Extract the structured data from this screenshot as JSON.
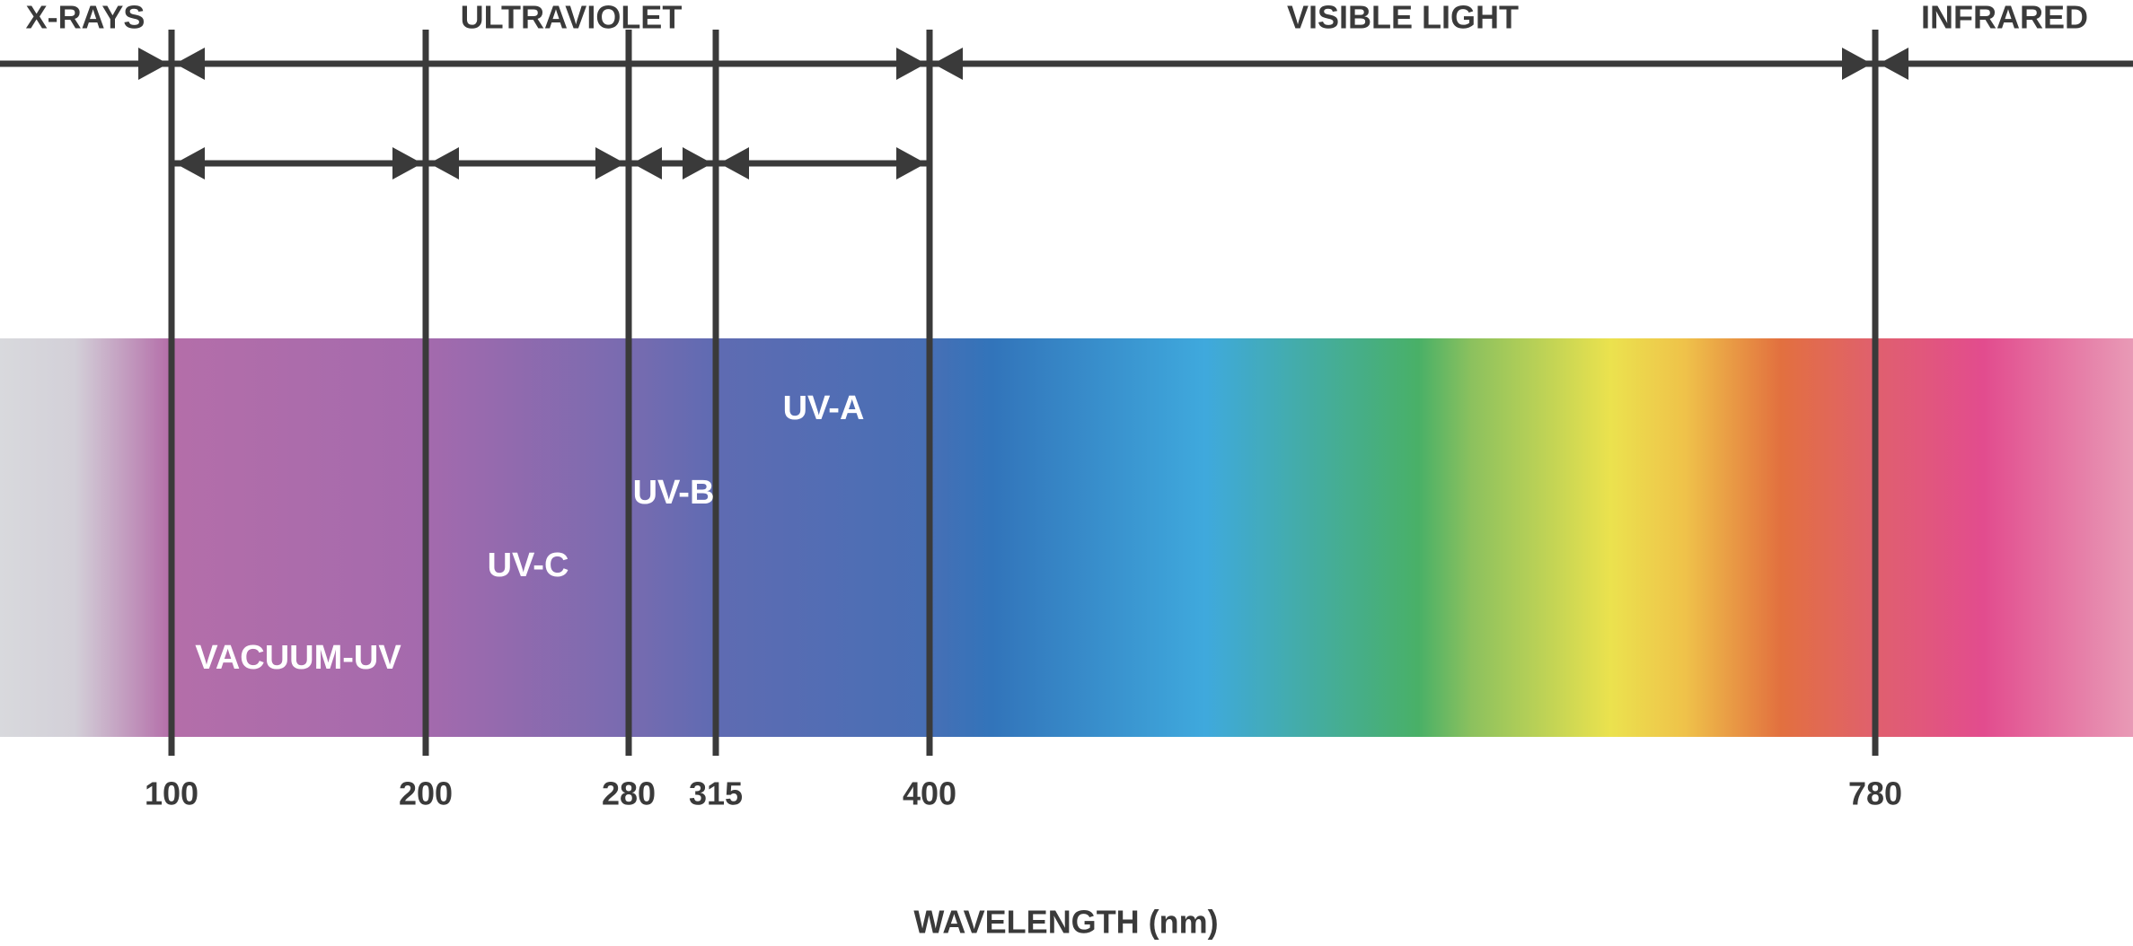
{
  "regions": [
    "X-RAYS",
    "ULTRAVIOLET",
    "VISIBLE LIGHT",
    "INFRARED"
  ],
  "bands": [
    "VACUUM-UV",
    "UV-C",
    "UV-B",
    "UV-A"
  ],
  "boundaries": [
    "100",
    "200",
    "280",
    "315",
    "400",
    "780"
  ],
  "axis_label": "WAVELENGTH (nm)"
}
